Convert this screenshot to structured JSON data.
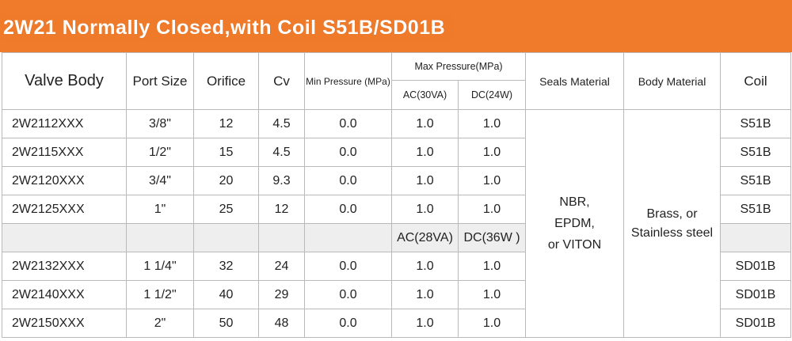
{
  "title": "2W21 Normally Closed,with Coil S51B/SD01B",
  "colors": {
    "banner": "#f07b2b",
    "title_text": "#ffffff",
    "grid": "#b9b9b9",
    "shaded_row": "#eeeeee"
  },
  "headers": {
    "valve_body": "Valve Body",
    "port_size": "Port Size",
    "orifice": "Orifice",
    "cv": "Cv",
    "min_pressure": "Min Pressure (MPa)",
    "max_pressure": "Max Pressure(MPa)",
    "ac_a": "AC(30VA)",
    "dc_a": "DC(24W)",
    "seals_material": "Seals Material",
    "body_material": "Body Material",
    "coil": "Coil"
  },
  "sub_headers_b": {
    "ac_b": "AC(28VA)",
    "dc_b": "DC(36W )"
  },
  "rows_a": [
    {
      "model": "2W2112XXX",
      "port": "3/8\"",
      "orifice": "12",
      "cv": "4.5",
      "min": "0.0",
      "ac": "1.0",
      "dc": "1.0",
      "coil": "S51B"
    },
    {
      "model": "2W2115XXX",
      "port": "1/2\"",
      "orifice": "15",
      "cv": "4.5",
      "min": "0.0",
      "ac": "1.0",
      "dc": "1.0",
      "coil": "S51B"
    },
    {
      "model": "2W2120XXX",
      "port": "3/4\"",
      "orifice": "20",
      "cv": "9.3",
      "min": "0.0",
      "ac": "1.0",
      "dc": "1.0",
      "coil": "S51B"
    },
    {
      "model": "2W2125XXX",
      "port": "1\"",
      "orifice": "25",
      "cv": "12",
      "min": "0.0",
      "ac": "1.0",
      "dc": "1.0",
      "coil": "S51B"
    }
  ],
  "rows_b": [
    {
      "model": "2W2132XXX",
      "port": "1 1/4\"",
      "orifice": "32",
      "cv": "24",
      "min": "0.0",
      "ac": "1.0",
      "dc": "1.0",
      "coil": "SD01B"
    },
    {
      "model": "2W2140XXX",
      "port": "1 1/2\"",
      "orifice": "40",
      "cv": "29",
      "min": "0.0",
      "ac": "1.0",
      "dc": "1.0",
      "coil": "SD01B"
    },
    {
      "model": "2W2150XXX",
      "port": "2\"",
      "orifice": "50",
      "cv": "48",
      "min": "0.0",
      "ac": "1.0",
      "dc": "1.0",
      "coil": "SD01B"
    }
  ],
  "seals_value": [
    "NBR,",
    "EPDM,",
    "or VITON"
  ],
  "body_material_value": [
    "Brass, or",
    "Stainless steel"
  ]
}
